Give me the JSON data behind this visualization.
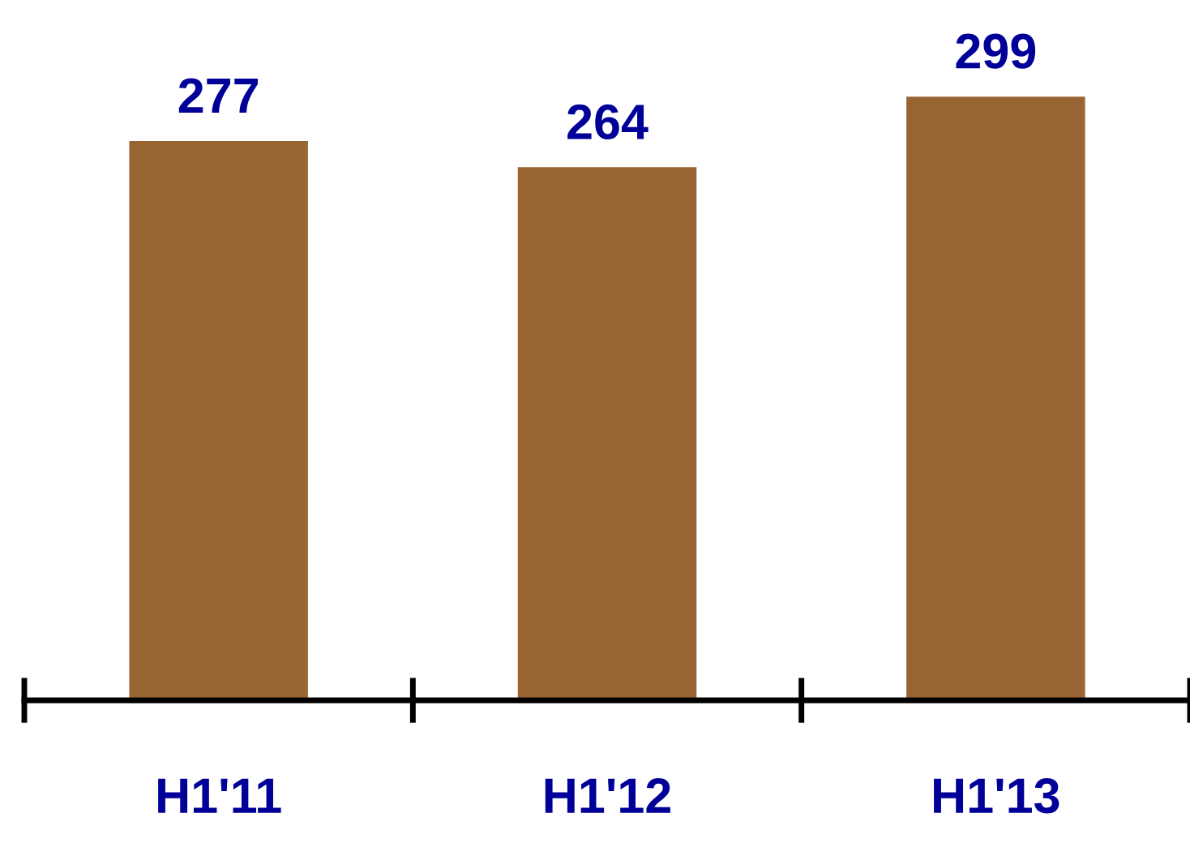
{
  "chart_data": {
    "type": "bar",
    "categories": [
      "H1'11",
      "H1'12",
      "H1'13"
    ],
    "values": [
      277,
      264,
      299
    ],
    "color": "#996633",
    "data_labels": true,
    "tick_labels": "x",
    "grid": false,
    "legend": false
  }
}
